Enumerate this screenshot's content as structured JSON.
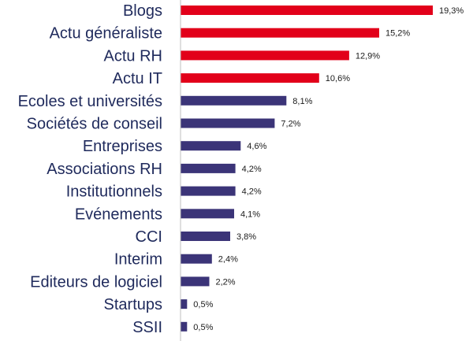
{
  "chart_data": {
    "type": "bar",
    "orientation": "horizontal",
    "title": "",
    "xlabel": "",
    "ylabel": "",
    "xlim": [
      0,
      19.3
    ],
    "grid": false,
    "categories": [
      "Blogs",
      "Actu généraliste",
      "Actu RH",
      "Actu IT",
      "Ecoles et universités",
      "Sociétés de conseil",
      "Entreprises",
      "Associations RH",
      "Institutionnels",
      "Evénements",
      "CCI",
      "Interim",
      "Editeurs de logiciel",
      "Startups",
      "SSII"
    ],
    "values": [
      19.3,
      15.2,
      12.9,
      10.6,
      8.1,
      7.2,
      4.6,
      4.2,
      4.2,
      4.1,
      3.8,
      2.4,
      2.2,
      0.5,
      0.5
    ],
    "value_labels": [
      "19,3%",
      "15,2%",
      "12,9%",
      "10,6%",
      "8,1%",
      "7,2%",
      "4,6%",
      "4,2%",
      "4,2%",
      "4,1%",
      "3,8%",
      "2,4%",
      "2,2%",
      "0,5%",
      "0,5%"
    ],
    "bar_colors": [
      "#e2001a",
      "#e2001a",
      "#e2001a",
      "#e2001a",
      "#3b3478",
      "#3b3478",
      "#3b3478",
      "#3b3478",
      "#3b3478",
      "#3b3478",
      "#3b3478",
      "#3b3478",
      "#3b3478",
      "#3b3478",
      "#3b3478"
    ],
    "axis_color": "#bfbfbf"
  }
}
